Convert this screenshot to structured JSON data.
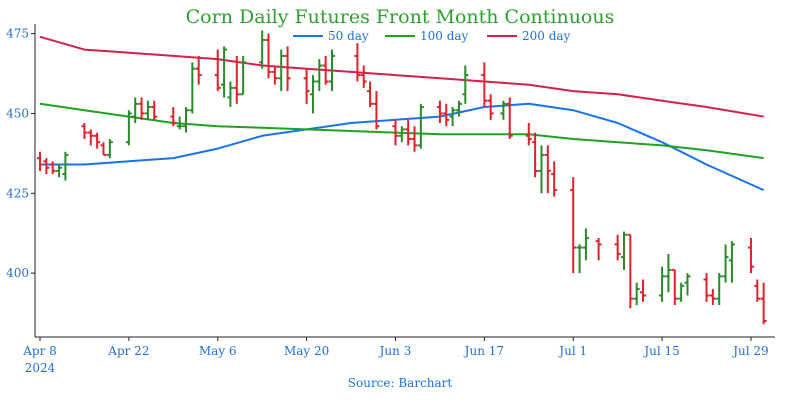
{
  "chart_data": {
    "type": "line",
    "title": "Corn Daily Futures Front Month Continuous",
    "source": "Source: Barchart",
    "x_tick_labels": [
      "Apr 8",
      "Apr 22",
      "May 6",
      "May 20",
      "Jun 3",
      "Jun 17",
      "Jul 1",
      "Jul 15",
      "Jul 29"
    ],
    "x_year_label": "2024",
    "y_ticks": [
      400,
      425,
      450,
      475
    ],
    "ylim": [
      380,
      478
    ],
    "grid": false,
    "legend_position": "top",
    "colors": {
      "up": "#2a8a2a",
      "down": "#e0202a",
      "ma50": "#1a73e8",
      "ma100": "#22a022",
      "ma200": "#d6204a",
      "axis_text": "#1f6fd6",
      "title": "#2ea02e"
    },
    "x": [
      "2024-04-08",
      "2024-04-09",
      "2024-04-10",
      "2024-04-11",
      "2024-04-12",
      "2024-04-15",
      "2024-04-16",
      "2024-04-17",
      "2024-04-18",
      "2024-04-19",
      "2024-04-22",
      "2024-04-23",
      "2024-04-24",
      "2024-04-25",
      "2024-04-26",
      "2024-04-29",
      "2024-04-30",
      "2024-05-01",
      "2024-05-02",
      "2024-05-03",
      "2024-05-06",
      "2024-05-07",
      "2024-05-08",
      "2024-05-09",
      "2024-05-10",
      "2024-05-13",
      "2024-05-14",
      "2024-05-15",
      "2024-05-16",
      "2024-05-17",
      "2024-05-20",
      "2024-05-21",
      "2024-05-22",
      "2024-05-23",
      "2024-05-24",
      "2024-05-28",
      "2024-05-29",
      "2024-05-30",
      "2024-05-31",
      "2024-06-03",
      "2024-06-04",
      "2024-06-05",
      "2024-06-06",
      "2024-06-07",
      "2024-06-10",
      "2024-06-11",
      "2024-06-12",
      "2024-06-13",
      "2024-06-14",
      "2024-06-17",
      "2024-06-18",
      "2024-06-20",
      "2024-06-21",
      "2024-06-24",
      "2024-06-25",
      "2024-06-26",
      "2024-06-27",
      "2024-06-28",
      "2024-07-01",
      "2024-07-02",
      "2024-07-03",
      "2024-07-05",
      "2024-07-08",
      "2024-07-09",
      "2024-07-10",
      "2024-07-11",
      "2024-07-12",
      "2024-07-15",
      "2024-07-16",
      "2024-07-17",
      "2024-07-18",
      "2024-07-19",
      "2024-07-22",
      "2024-07-23",
      "2024-07-24",
      "2024-07-25",
      "2024-07-26",
      "2024-07-29",
      "2024-07-30",
      "2024-07-31"
    ],
    "ohlc": [
      [
        436,
        438,
        432,
        434
      ],
      [
        435,
        436,
        431,
        433
      ],
      [
        434,
        435,
        431,
        432
      ],
      [
        432,
        434,
        430,
        433
      ],
      [
        431,
        438,
        429,
        437
      ],
      [
        446,
        447,
        442,
        444
      ],
      [
        444,
        445,
        440,
        443
      ],
      [
        443,
        444,
        439,
        441
      ],
      [
        440,
        441,
        437,
        437
      ],
      [
        437,
        442,
        436,
        441
      ],
      [
        441,
        451,
        440,
        450
      ],
      [
        449,
        455,
        447,
        453
      ],
      [
        453,
        455,
        448,
        450
      ],
      [
        450,
        454,
        448,
        452
      ],
      [
        452,
        454,
        448,
        449
      ],
      [
        449,
        452,
        446,
        447
      ],
      [
        446,
        449,
        445,
        446
      ],
      [
        446,
        452,
        444,
        451
      ],
      [
        451,
        466,
        450,
        464
      ],
      [
        464,
        468,
        459,
        462
      ],
      [
        462,
        470,
        457,
        458
      ],
      [
        459,
        471,
        455,
        470
      ],
      [
        455,
        460,
        452,
        458
      ],
      [
        458,
        468,
        453,
        456
      ],
      [
        456,
        468,
        456,
        466
      ],
      [
        466,
        476,
        464,
        473
      ],
      [
        473,
        475,
        461,
        463
      ],
      [
        463,
        465,
        459,
        461
      ],
      [
        461,
        470,
        457,
        468
      ],
      [
        468,
        471,
        457,
        461
      ],
      [
        461,
        464,
        453,
        457
      ],
      [
        456,
        462,
        450,
        460
      ],
      [
        460,
        467,
        457,
        465
      ],
      [
        465,
        468,
        459,
        460
      ],
      [
        460,
        470,
        457,
        468
      ],
      [
        468,
        472,
        460,
        462
      ],
      [
        462,
        465,
        458,
        460
      ],
      [
        457,
        460,
        452,
        453
      ],
      [
        453,
        457,
        445,
        446
      ],
      [
        446,
        448,
        440,
        443
      ],
      [
        443,
        446,
        441,
        445
      ],
      [
        445,
        448,
        440,
        442
      ],
      [
        442,
        446,
        438,
        440
      ],
      [
        440,
        453,
        439,
        452
      ],
      [
        452,
        454,
        447,
        450
      ],
      [
        450,
        453,
        446,
        448
      ],
      [
        449,
        452,
        446,
        451
      ],
      [
        451,
        454,
        449,
        453
      ],
      [
        456,
        465,
        453,
        462
      ],
      [
        462,
        466,
        452,
        454
      ],
      [
        454,
        456,
        448,
        450
      ],
      [
        450,
        454,
        448,
        453
      ],
      [
        453,
        455,
        442,
        443
      ],
      [
        443,
        447,
        440,
        442
      ],
      [
        441,
        444,
        430,
        432
      ],
      [
        432,
        440,
        425,
        437
      ],
      [
        437,
        440,
        425,
        432
      ],
      [
        431,
        435,
        424,
        426
      ],
      [
        426,
        430,
        400,
        408
      ],
      [
        408,
        409,
        400,
        408
      ],
      [
        408,
        414,
        404,
        411
      ],
      [
        410,
        411,
        404,
        409
      ],
      [
        409,
        412,
        404,
        406
      ],
      [
        405,
        413,
        401,
        412
      ],
      [
        412,
        412,
        389,
        392
      ],
      [
        392,
        397,
        390,
        395
      ],
      [
        394,
        398,
        391,
        393
      ],
      [
        393,
        402,
        391,
        399
      ],
      [
        399,
        406,
        394,
        401
      ],
      [
        401,
        401,
        390,
        392
      ],
      [
        392,
        397,
        391,
        396
      ],
      [
        397,
        400,
        393,
        399
      ],
      [
        398,
        400,
        391,
        393
      ],
      [
        393,
        395,
        390,
        392
      ],
      [
        392,
        400,
        390,
        399
      ],
      [
        399,
        409,
        397,
        405
      ],
      [
        404,
        410,
        397,
        409
      ],
      [
        408,
        411,
        400,
        402
      ],
      [
        396,
        398,
        391,
        392
      ],
      [
        392,
        397,
        384,
        385
      ]
    ],
    "series": [
      {
        "name": "50 day",
        "color": "#1a73e8",
        "x": [
          "2024-04-08",
          "2024-04-15",
          "2024-04-22",
          "2024-04-29",
          "2024-05-06",
          "2024-05-13",
          "2024-05-20",
          "2024-05-27",
          "2024-06-03",
          "2024-06-10",
          "2024-06-17",
          "2024-06-24",
          "2024-07-01",
          "2024-07-08",
          "2024-07-15",
          "2024-07-22",
          "2024-07-31"
        ],
        "values": [
          434,
          434,
          435,
          436,
          439,
          443,
          445,
          447,
          448,
          449,
          452,
          453,
          451,
          447,
          441,
          434,
          426
        ]
      },
      {
        "name": "100 day",
        "color": "#22a022",
        "x": [
          "2024-04-08",
          "2024-04-15",
          "2024-04-22",
          "2024-04-29",
          "2024-05-06",
          "2024-05-13",
          "2024-05-20",
          "2024-05-27",
          "2024-06-03",
          "2024-06-10",
          "2024-06-17",
          "2024-06-24",
          "2024-07-01",
          "2024-07-08",
          "2024-07-15",
          "2024-07-22",
          "2024-07-31"
        ],
        "values": [
          453,
          451,
          449,
          447,
          446,
          445.5,
          445,
          444.5,
          444,
          443.5,
          443.5,
          443.5,
          442,
          441,
          440,
          438.5,
          436
        ]
      },
      {
        "name": "200 day",
        "color": "#d6204a",
        "x": [
          "2024-04-08",
          "2024-04-15",
          "2024-04-22",
          "2024-04-29",
          "2024-05-06",
          "2024-05-13",
          "2024-05-20",
          "2024-05-27",
          "2024-06-03",
          "2024-06-10",
          "2024-06-17",
          "2024-06-24",
          "2024-07-01",
          "2024-07-08",
          "2024-07-15",
          "2024-07-22",
          "2024-07-31"
        ],
        "values": [
          474,
          470,
          469,
          468,
          467,
          465,
          464,
          463,
          462,
          461,
          460,
          459,
          457,
          456,
          454,
          452,
          449
        ]
      }
    ]
  }
}
